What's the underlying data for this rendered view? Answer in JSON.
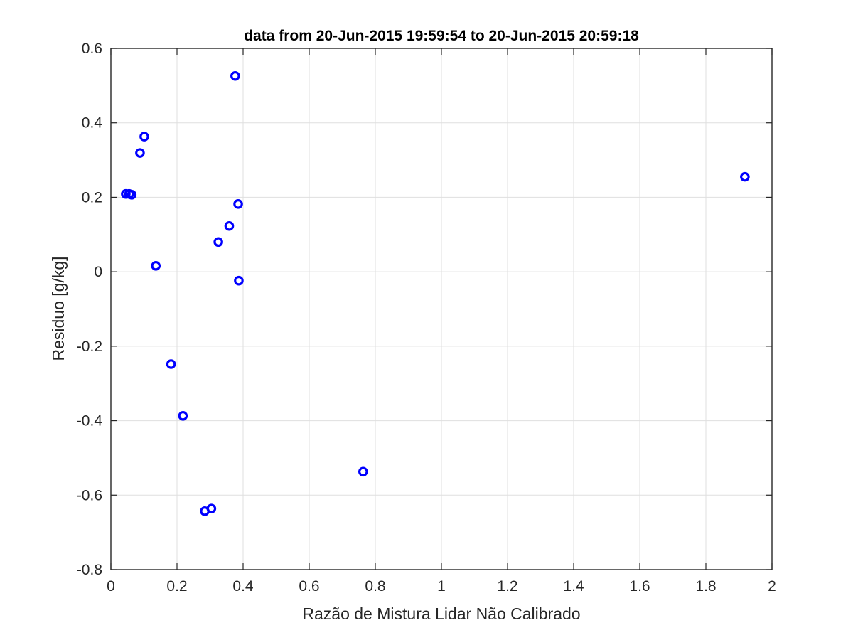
{
  "chart_data": {
    "type": "scatter",
    "title": "data from 20-Jun-2015 19:59:54 to 20-Jun-2015 20:59:18",
    "xlabel": "Razão de Mistura Lidar Não Calibrado",
    "ylabel": "Residuo [g/kg]",
    "xlim": [
      0,
      2
    ],
    "ylim": [
      -0.8,
      0.6
    ],
    "xticks": [
      0,
      0.2,
      0.4,
      0.6,
      0.8,
      1,
      1.2,
      1.4,
      1.6,
      1.8,
      2
    ],
    "xtick_labels": [
      "0",
      "0.2",
      "0.4",
      "0.6",
      "0.8",
      "1",
      "1.2",
      "1.4",
      "1.6",
      "1.8",
      "2"
    ],
    "yticks": [
      0.6,
      0.4,
      0.2,
      0,
      -0.2,
      -0.4,
      -0.6,
      -0.8
    ],
    "ytick_labels": [
      "0.6",
      "0.4",
      "0.2",
      "0",
      "-0.2",
      "-0.4",
      "-0.6",
      "-0.8"
    ],
    "grid": true,
    "marker": "o",
    "color": "#0000ff",
    "series": [
      {
        "points": [
          {
            "x": 0.045,
            "y": 0.209
          },
          {
            "x": 0.055,
            "y": 0.209
          },
          {
            "x": 0.063,
            "y": 0.207
          },
          {
            "x": 0.088,
            "y": 0.319
          },
          {
            "x": 0.101,
            "y": 0.363
          },
          {
            "x": 0.136,
            "y": 0.016
          },
          {
            "x": 0.182,
            "y": -0.248
          },
          {
            "x": 0.218,
            "y": -0.387
          },
          {
            "x": 0.284,
            "y": -0.643
          },
          {
            "x": 0.304,
            "y": -0.636
          },
          {
            "x": 0.325,
            "y": 0.08
          },
          {
            "x": 0.358,
            "y": 0.123
          },
          {
            "x": 0.376,
            "y": 0.526
          },
          {
            "x": 0.385,
            "y": 0.182
          },
          {
            "x": 0.387,
            "y": -0.024
          },
          {
            "x": 0.763,
            "y": -0.537
          },
          {
            "x": 1.918,
            "y": 0.255
          }
        ]
      }
    ]
  }
}
